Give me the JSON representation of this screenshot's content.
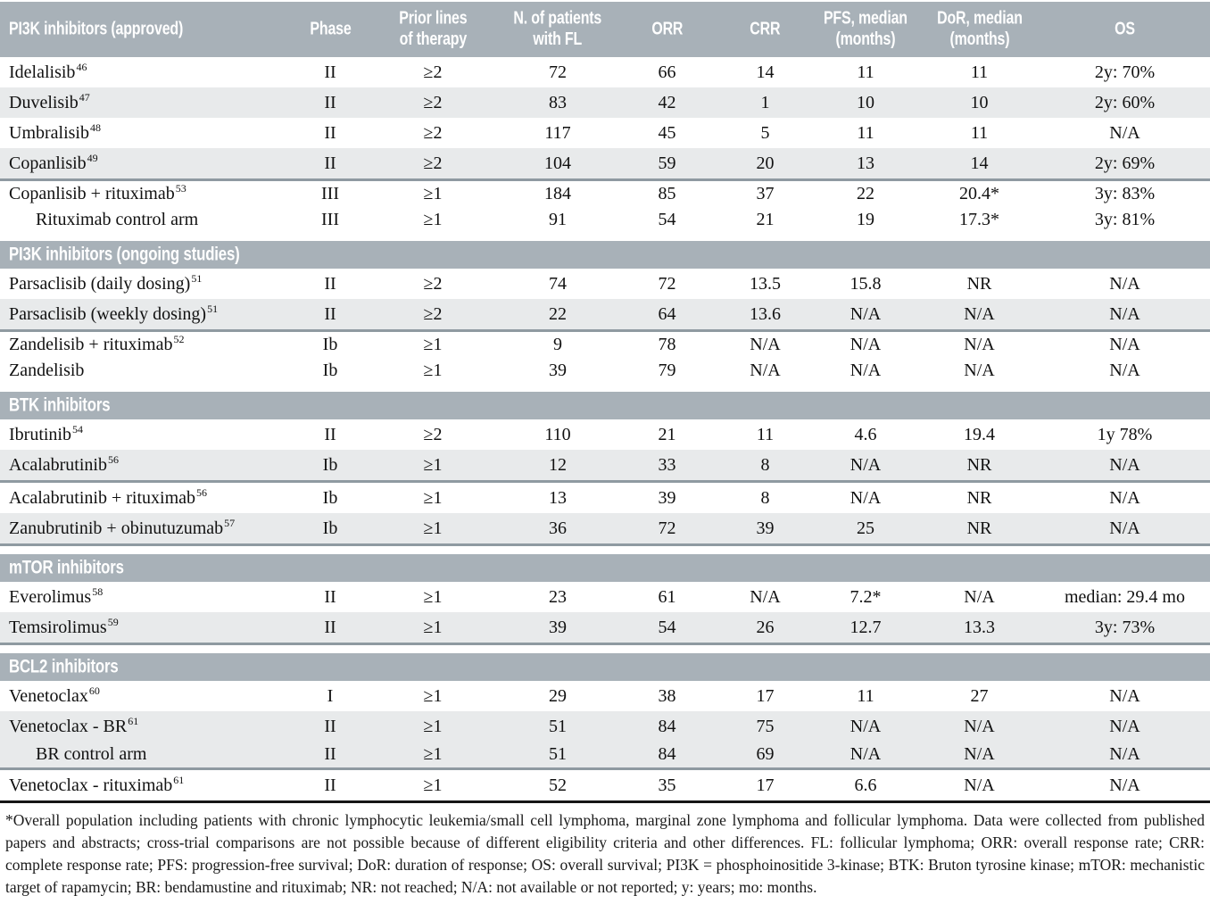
{
  "columns": [
    {
      "label": "PI3K inhibitors (approved)"
    },
    {
      "label": "Phase"
    },
    {
      "label": "Prior lines\nof therapy"
    },
    {
      "label": "N. of patients\nwith FL"
    },
    {
      "label": "ORR"
    },
    {
      "label": "CRR"
    },
    {
      "label": "PFS, median\n(months)"
    },
    {
      "label": "DoR, median\n(months)"
    },
    {
      "label": "OS"
    }
  ],
  "sections": [
    {
      "header": null,
      "groups": [
        [
          {
            "name": "Idelalisib",
            "sup": "46",
            "shade": false,
            "indent": false,
            "cells": [
              "II",
              "≥2",
              "72",
              "66",
              "14",
              "11",
              "11",
              "2y: 70%"
            ]
          },
          {
            "name": "Duvelisib",
            "sup": "47",
            "shade": true,
            "indent": false,
            "cells": [
              "II",
              "≥2",
              "83",
              "42",
              "1",
              "10",
              "10",
              "2y: 60%"
            ]
          },
          {
            "name": "Umbralisib",
            "sup": "48",
            "shade": false,
            "indent": false,
            "cells": [
              "II",
              "≥2",
              "117",
              "45",
              "5",
              "11",
              "11",
              "N/A"
            ]
          },
          {
            "name": "Copanlisib",
            "sup": "49",
            "shade": true,
            "indent": false,
            "cells": [
              "II",
              "≥2",
              "104",
              "59",
              "20",
              "13",
              "14",
              "2y: 69%"
            ]
          }
        ],
        [
          {
            "name": "Copanlisib + rituximab",
            "sup": "53",
            "shade": false,
            "indent": false,
            "compact": true,
            "cells": [
              "III",
              "≥1",
              "184",
              "85",
              "37",
              "22",
              "20.4*",
              "3y: 83%"
            ]
          },
          {
            "name": "Rituximab control arm",
            "sup": "",
            "shade": false,
            "indent": true,
            "compact": true,
            "cells": [
              "III",
              "≥1",
              "91",
              "54",
              "21",
              "19",
              "17.3*",
              "3y: 81%"
            ]
          }
        ]
      ],
      "end_separator": false
    },
    {
      "header": "PI3K inhibitors (ongoing studies)",
      "groups": [
        [
          {
            "name": "Parsaclisib (daily dosing)",
            "sup": "51",
            "shade": false,
            "indent": false,
            "cells": [
              "II",
              "≥2",
              "74",
              "72",
              "13.5",
              "15.8",
              "NR",
              "N/A"
            ]
          },
          {
            "name": "Parsaclisib (weekly dosing)",
            "sup": "51",
            "shade": true,
            "indent": false,
            "cells": [
              "II",
              "≥2",
              "22",
              "64",
              "13.6",
              "N/A",
              "N/A",
              "N/A"
            ]
          }
        ],
        [
          {
            "name": "Zandelisib + rituximab",
            "sup": "52",
            "shade": false,
            "indent": false,
            "compact": true,
            "cells": [
              "Ib",
              "≥1",
              "9",
              "78",
              "N/A",
              "N/A",
              "N/A",
              "N/A"
            ]
          },
          {
            "name": "Zandelisib",
            "sup": "",
            "shade": false,
            "indent": false,
            "compact": true,
            "cells": [
              "Ib",
              "≥1",
              "39",
              "79",
              "N/A",
              "N/A",
              "N/A",
              "N/A"
            ]
          }
        ]
      ],
      "end_separator": false
    },
    {
      "header": "BTK inhibitors",
      "groups": [
        [
          {
            "name": "Ibrutinib",
            "sup": "54",
            "shade": false,
            "indent": false,
            "cells": [
              "II",
              "≥2",
              "110",
              "21",
              "11",
              "4.6",
              "19.4",
              "1y 78%"
            ]
          },
          {
            "name": "Acalabrutinib",
            "sup": "56",
            "shade": true,
            "indent": false,
            "cells": [
              "Ib",
              "≥1",
              "12",
              "33",
              "8",
              "N/A",
              "NR",
              "N/A"
            ]
          }
        ],
        [
          {
            "name": "Acalabrutinib + rituximab",
            "sup": "56",
            "shade": false,
            "indent": false,
            "cells": [
              "Ib",
              "≥1",
              "13",
              "39",
              "8",
              "N/A",
              "NR",
              "N/A"
            ]
          },
          {
            "name": "Zanubrutinib + obinutuzumab",
            "sup": "57",
            "shade": true,
            "indent": false,
            "cells": [
              "Ib",
              "≥1",
              "36",
              "72",
              "39",
              "25",
              "NR",
              "N/A"
            ]
          }
        ]
      ],
      "end_separator": true
    },
    {
      "header": "mTOR inhibitors",
      "groups": [
        [
          {
            "name": "Everolimus",
            "sup": "58",
            "shade": false,
            "indent": false,
            "cells": [
              "II",
              "≥1",
              "23",
              "61",
              "N/A",
              "7.2*",
              "N/A",
              "median: 29.4 mo"
            ]
          },
          {
            "name": "Temsirolimus",
            "sup": "59",
            "shade": true,
            "indent": false,
            "cells": [
              "II",
              "≥1",
              "39",
              "54",
              "26",
              "12.7",
              "13.3",
              "3y: 73%"
            ]
          }
        ]
      ],
      "end_separator": true
    },
    {
      "header": "BCL2 inhibitors",
      "groups": [
        [
          {
            "name": "Venetoclax",
            "sup": "60",
            "shade": false,
            "indent": false,
            "cells": [
              "I",
              "≥1",
              "29",
              "38",
              "17",
              "11",
              "27",
              "N/A"
            ]
          },
          {
            "name": "Venetoclax - BR",
            "sup": "61",
            "shade": true,
            "indent": false,
            "cells": [
              "II",
              "≥1",
              "51",
              "84",
              "75",
              "N/A",
              "N/A",
              "N/A"
            ]
          },
          {
            "name": "BR control arm",
            "sup": "",
            "shade": true,
            "indent": true,
            "compact": true,
            "cells": [
              "II",
              "≥1",
              "51",
              "84",
              "69",
              "N/A",
              "N/A",
              "N/A"
            ]
          }
        ],
        [
          {
            "name": "Venetoclax - rituximab",
            "sup": "61",
            "shade": false,
            "indent": false,
            "cells": [
              "II",
              "≥1",
              "52",
              "35",
              "17",
              "6.6",
              "N/A",
              "N/A"
            ]
          }
        ]
      ],
      "end_separator": false
    }
  ],
  "footnote": "*Overall population including patients with chronic lymphocytic leukemia/small cell lymphoma, marginal zone lymphoma and follicular lymphoma. Data were collected from published papers and abstracts; cross-trial comparisons are not possible because of different eligibility criteria and other differences. FL: follicular lymphoma; ORR: overall response rate; CRR: complete response rate; PFS: progression-free survival; DoR: duration of response; OS: overall survival; PI3K = phosphoinositide 3-kinase; BTK: Bruton tyrosine kinase; mTOR: mechanistic target of rapamycin; BR: bendamustine and rituximab; NR: not reached; N/A: not available or not reported; y: years; mo: months.",
  "colors": {
    "band": "#a8b1b8",
    "shade_row": "#e8eaeb",
    "separator": "#8f9aa1",
    "bottom_rule": "#161616"
  }
}
